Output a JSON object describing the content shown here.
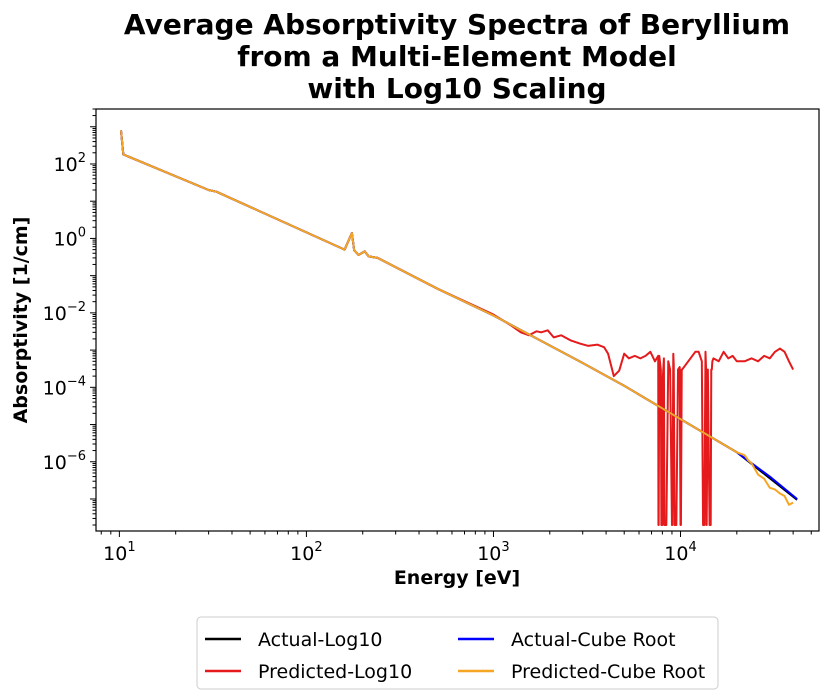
{
  "chart_data": {
    "type": "line",
    "title": [
      "Average Absorptivity Spectra of Beryllium",
      "from a Multi-Element Model",
      "with Log10 Scaling"
    ],
    "xlabel": "Energy [eV]",
    "ylabel": "Absorptivity [1/cm]",
    "xscale": "log",
    "yscale": "log",
    "xlim": [
      7.5,
      55000
    ],
    "ylim": [
      1.38e-08,
      3000
    ],
    "x_ticks": [
      {
        "base": "10",
        "exp": "1",
        "value": 10
      },
      {
        "base": "10",
        "exp": "2",
        "value": 100
      },
      {
        "base": "10",
        "exp": "3",
        "value": 1000
      },
      {
        "base": "10",
        "exp": "4",
        "value": 10000
      }
    ],
    "y_ticks": [
      {
        "base": "10",
        "exp": "2",
        "value": 100
      },
      {
        "base": "10",
        "exp": "0",
        "value": 1
      },
      {
        "base": "10",
        "exp": "−2",
        "value": 0.01
      },
      {
        "base": "10",
        "exp": "−4",
        "value": 0.0001
      },
      {
        "base": "10",
        "exp": "−6",
        "value": 1e-06
      }
    ],
    "legend_position": "bottom-center",
    "series": [
      {
        "name": "Actual-Log10",
        "color": "#000000",
        "x": [
          10.2,
          10.5,
          30,
          33,
          160,
          175,
          180,
          190,
          205,
          215,
          240,
          500,
          1000,
          3000,
          5000,
          10000,
          20000,
          42000
        ],
        "y": [
          800,
          180,
          20,
          18,
          0.5,
          1.4,
          0.48,
          0.36,
          0.45,
          0.33,
          0.3,
          0.045,
          0.0085,
          0.00045,
          0.00011,
          1.4e-05,
          1.8e-06,
          9.5e-08
        ]
      },
      {
        "name": "Predicted-Log10",
        "color": "#e41a1c",
        "x": [
          10.2,
          10.5,
          30,
          33,
          160,
          175,
          180,
          190,
          205,
          215,
          240,
          500,
          1000,
          1250,
          1400,
          1550,
          1700,
          1800,
          1950,
          2100,
          2300,
          2600,
          2900,
          3200,
          3600,
          3900,
          4100,
          4400,
          4700,
          5000,
          5300,
          5700,
          6100,
          6500,
          6900,
          7300,
          7600,
          7620,
          7640,
          7700,
          7850,
          7900,
          8000,
          8050,
          8150,
          8200,
          8400,
          8600,
          8800,
          9000,
          9050,
          9150,
          9200,
          9300,
          9500,
          9700,
          9900,
          10000,
          10050,
          10150,
          10200,
          11000,
          12000,
          12500,
          13000,
          13200,
          13400,
          13600,
          13700,
          13750,
          13800,
          14000,
          14300,
          14500,
          14600,
          14700,
          14800,
          15000,
          16000,
          17000,
          18000,
          19000,
          20000,
          22000,
          24000,
          26000,
          28000,
          30000,
          32000,
          34000,
          36000,
          38000,
          40000
        ],
        "y": [
          800,
          180,
          20,
          18,
          0.5,
          1.4,
          0.48,
          0.36,
          0.45,
          0.33,
          0.3,
          0.045,
          0.009,
          0.0045,
          0.003,
          0.0025,
          0.0032,
          0.003,
          0.0034,
          0.0022,
          0.0025,
          0.0018,
          0.0015,
          0.0013,
          0.0014,
          0.0012,
          0.0008,
          0.0002,
          0.00028,
          0.0008,
          0.0006,
          0.0007,
          0.0006,
          0.0007,
          0.0009,
          0.0005,
          0.0007,
          2e-08,
          2e-08,
          0.0007,
          0.0003,
          2e-08,
          2e-08,
          0.0002,
          0.0006,
          2e-08,
          2e-08,
          0.0005,
          0.0003,
          2e-08,
          2e-08,
          0.0008,
          0.0004,
          2e-08,
          2e-08,
          0.0003,
          0.00035,
          2e-08,
          2e-08,
          0.0003,
          0.0003,
          0.0005,
          0.0009,
          0.0009,
          0.0005,
          2e-08,
          2e-08,
          0.0009,
          0.0003,
          2e-08,
          2e-08,
          0.0003,
          2e-08,
          2e-08,
          0.0003,
          0.0003,
          0.0005,
          0.0006,
          0.0005,
          0.0009,
          0.0006,
          0.0007,
          0.0005,
          0.0005,
          0.0006,
          0.0005,
          0.0007,
          0.0006,
          0.0009,
          0.0011,
          0.0009,
          0.0005,
          0.0003
        ]
      },
      {
        "name": "Actual-Cube Root",
        "color": "#0000ff",
        "x": [
          10.2,
          10.5,
          30,
          33,
          160,
          175,
          180,
          190,
          205,
          215,
          240,
          500,
          1000,
          3000,
          5000,
          10000,
          20000,
          30000,
          42000
        ],
        "y": [
          800,
          180,
          20,
          18,
          0.5,
          1.4,
          0.48,
          0.36,
          0.45,
          0.33,
          0.3,
          0.045,
          0.0085,
          0.00045,
          0.00011,
          1.4e-05,
          1.8e-06,
          4e-07,
          1e-07
        ]
      },
      {
        "name": "Predicted-Cube Root",
        "color": "#f5a623",
        "x": [
          10.2,
          10.5,
          30,
          33,
          160,
          175,
          180,
          190,
          205,
          215,
          240,
          500,
          1000,
          3000,
          5000,
          10000,
          20000,
          22000,
          23000,
          24000,
          26000,
          28000,
          30000,
          32000,
          34000,
          36000,
          38000,
          40000
        ],
        "y": [
          800,
          180,
          20,
          18,
          0.5,
          1.4,
          0.48,
          0.36,
          0.45,
          0.33,
          0.3,
          0.045,
          0.0085,
          0.00045,
          0.00011,
          1.4e-05,
          1.8e-06,
          1.5e-06,
          1.1e-06,
          9e-07,
          4.5e-07,
          3.5e-07,
          2e-07,
          1.8e-07,
          1.4e-07,
          1.2e-07,
          7e-08,
          8e-08
        ]
      }
    ],
    "legend": {
      "columns": 2,
      "items": [
        {
          "label": "Actual-Log10",
          "color": "#000000"
        },
        {
          "label": "Actual-Cube Root",
          "color": "#0000ff"
        },
        {
          "label": "Predicted-Log10",
          "color": "#e41a1c"
        },
        {
          "label": "Predicted-Cube Root",
          "color": "#f5a623"
        }
      ]
    }
  }
}
